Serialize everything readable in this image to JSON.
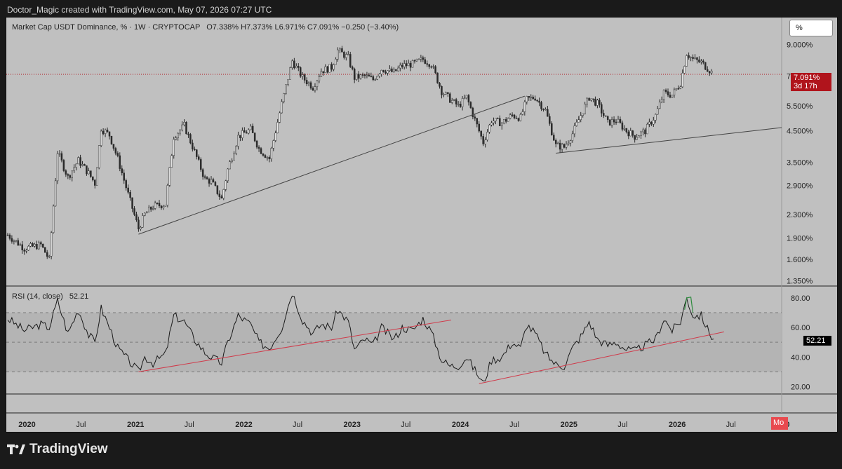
{
  "attribution": "Doctor_Magic created with TradingView.com, May 07, 2026 07:27 UTC",
  "legend": {
    "title": "Market Cap USDT Dominance, % · 1W · CRYPTOCAP",
    "ohlc": "O7.338%  H7.373%  L6.971%  C7.091%  −0.250 (−3.40%)"
  },
  "scale_button": "%",
  "price_tag": {
    "value": "7.091%",
    "countdown": "3d 17h",
    "color": "#b0141c"
  },
  "rsi": {
    "label": "RSI (14, close)",
    "value": "52.21"
  },
  "month_tag": "Mo",
  "brand": "TradingView",
  "colors": {
    "candle": "#2a2a2a",
    "trendline": "#444444",
    "rsi_trendline": "#d03a4a",
    "rsi_overbought": "#2e8b3e",
    "background": "#c0c0c0"
  },
  "chart_data": [
    {
      "type": "candlestick",
      "title": "Market Cap USDT Dominance",
      "y_scale": "log",
      "yticks": [
        "9.000%",
        "7.000%",
        "5.500%",
        "4.500%",
        "3.500%",
        "2.900%",
        "2.300%",
        "1.900%",
        "1.600%",
        "1.350%"
      ],
      "xticks": [
        "2020",
        "Jul",
        "2021",
        "Jul",
        "2022",
        "Jul",
        "2023",
        "Jul",
        "2024",
        "Jul",
        "2025",
        "Jul",
        "2026",
        "Jul",
        "20"
      ],
      "ylim": [
        1.3,
        10.0
      ],
      "last_close": 7.091,
      "series_points": [
        [
          "2019-10-28",
          1.95
        ],
        [
          "2019-12-23",
          1.75
        ],
        [
          "2020-02-17",
          1.8
        ],
        [
          "2020-03-16",
          1.6
        ],
        [
          "2020-04-13",
          3.8
        ],
        [
          "2020-05-18",
          3.1
        ],
        [
          "2020-06-22",
          3.55
        ],
        [
          "2020-07-27",
          3.2
        ],
        [
          "2020-08-17",
          2.95
        ],
        [
          "2020-09-07",
          4.6
        ],
        [
          "2020-10-05",
          4.35
        ],
        [
          "2020-11-02",
          3.6
        ],
        [
          "2020-12-07",
          2.7
        ],
        [
          "2021-01-11",
          2.05
        ],
        [
          "2021-02-01",
          2.3
        ],
        [
          "2021-03-01",
          2.45
        ],
        [
          "2021-04-12",
          2.5
        ],
        [
          "2021-05-10",
          4.3
        ],
        [
          "2021-06-14",
          4.7
        ],
        [
          "2021-07-19",
          3.8
        ],
        [
          "2021-08-23",
          3.05
        ],
        [
          "2021-09-13",
          3.0
        ],
        [
          "2021-10-18",
          2.6
        ],
        [
          "2021-11-08",
          3.3
        ],
        [
          "2021-12-13",
          4.3
        ],
        [
          "2022-01-24",
          4.55
        ],
        [
          "2022-02-21",
          3.9
        ],
        [
          "2022-03-28",
          3.6
        ],
        [
          "2022-05-09",
          5.6
        ],
        [
          "2022-06-13",
          7.9
        ],
        [
          "2022-07-18",
          6.9
        ],
        [
          "2022-08-22",
          6.4
        ],
        [
          "2022-09-19",
          7.3
        ],
        [
          "2022-10-24",
          7.5
        ],
        [
          "2022-11-14",
          8.6
        ],
        [
          "2022-12-19",
          8.1
        ],
        [
          "2023-01-09",
          6.9
        ],
        [
          "2023-02-13",
          7.0
        ],
        [
          "2023-03-13",
          6.8
        ],
        [
          "2023-04-10",
          7.4
        ],
        [
          "2023-05-22",
          7.2
        ],
        [
          "2023-06-19",
          7.6
        ],
        [
          "2023-07-24",
          7.7
        ],
        [
          "2023-08-28",
          8.0
        ],
        [
          "2023-09-25",
          7.7
        ],
        [
          "2023-10-30",
          6.2
        ],
        [
          "2023-11-27",
          5.8
        ],
        [
          "2023-12-25",
          5.5
        ],
        [
          "2024-01-22",
          5.9
        ],
        [
          "2024-02-26",
          4.7
        ],
        [
          "2024-03-18",
          4.1
        ],
        [
          "2024-04-15",
          4.9
        ],
        [
          "2024-05-20",
          4.8
        ],
        [
          "2024-06-24",
          5.1
        ],
        [
          "2024-07-22",
          5.0
        ],
        [
          "2024-08-12",
          5.8
        ],
        [
          "2024-09-09",
          5.9
        ],
        [
          "2024-10-14",
          5.3
        ],
        [
          "2024-11-18",
          4.0
        ],
        [
          "2024-12-16",
          3.95
        ],
        [
          "2025-01-13",
          4.4
        ],
        [
          "2025-02-17",
          5.3
        ],
        [
          "2025-03-10",
          5.9
        ],
        [
          "2025-04-07",
          5.6
        ],
        [
          "2025-05-12",
          4.8
        ],
        [
          "2025-06-09",
          4.9
        ],
        [
          "2025-07-14",
          4.5
        ],
        [
          "2025-08-11",
          4.3
        ],
        [
          "2025-09-15",
          4.5
        ],
        [
          "2025-10-20",
          5.1
        ],
        [
          "2025-11-17",
          6.1
        ],
        [
          "2025-12-15",
          6.0
        ],
        [
          "2026-01-12",
          6.6
        ],
        [
          "2026-02-02",
          8.4
        ],
        [
          "2026-02-23",
          8.0
        ],
        [
          "2026-03-23",
          7.8
        ],
        [
          "2026-04-20",
          7.34
        ],
        [
          "2026-05-04",
          7.091
        ]
      ]
    },
    {
      "type": "line",
      "title": "RSI (14, close)",
      "yticks": [
        "80.00",
        "60.00",
        "40.00",
        "20.00"
      ],
      "ylim": [
        15,
        88
      ],
      "bands": [
        70,
        50,
        30
      ],
      "last_value": 52.21,
      "series_points": [
        [
          "2019-10-28",
          66
        ],
        [
          "2019-12-23",
          58
        ],
        [
          "2020-02-17",
          62
        ],
        [
          "2020-03-16",
          60
        ],
        [
          "2020-04-13",
          78
        ],
        [
          "2020-05-18",
          56
        ],
        [
          "2020-06-22",
          72
        ],
        [
          "2020-07-27",
          55
        ],
        [
          "2020-08-17",
          50
        ],
        [
          "2020-09-07",
          73
        ],
        [
          "2020-10-05",
          60
        ],
        [
          "2020-11-02",
          46
        ],
        [
          "2020-12-07",
          38
        ],
        [
          "2021-01-11",
          30
        ],
        [
          "2021-02-01",
          40
        ],
        [
          "2021-03-01",
          36
        ],
        [
          "2021-04-12",
          42
        ],
        [
          "2021-05-10",
          68
        ],
        [
          "2021-06-14",
          64
        ],
        [
          "2021-07-19",
          52
        ],
        [
          "2021-08-23",
          43
        ],
        [
          "2021-09-13",
          40
        ],
        [
          "2021-10-18",
          36
        ],
        [
          "2021-11-08",
          50
        ],
        [
          "2021-12-13",
          68
        ],
        [
          "2022-01-24",
          62
        ],
        [
          "2022-02-21",
          50
        ],
        [
          "2022-03-28",
          46
        ],
        [
          "2022-05-09",
          60
        ],
        [
          "2022-06-13",
          84
        ],
        [
          "2022-07-18",
          65
        ],
        [
          "2022-08-22",
          56
        ],
        [
          "2022-09-19",
          62
        ],
        [
          "2022-10-24",
          60
        ],
        [
          "2022-11-14",
          72
        ],
        [
          "2022-12-19",
          64
        ],
        [
          "2023-01-09",
          45
        ],
        [
          "2023-02-13",
          52
        ],
        [
          "2023-03-13",
          48
        ],
        [
          "2023-04-10",
          60
        ],
        [
          "2023-05-22",
          52
        ],
        [
          "2023-06-19",
          60
        ],
        [
          "2023-07-24",
          58
        ],
        [
          "2023-08-28",
          66
        ],
        [
          "2023-09-25",
          57
        ],
        [
          "2023-10-30",
          38
        ],
        [
          "2023-11-27",
          34
        ],
        [
          "2023-12-25",
          34
        ],
        [
          "2024-01-22",
          40
        ],
        [
          "2024-02-26",
          29
        ],
        [
          "2024-03-18",
          22
        ],
        [
          "2024-04-15",
          38
        ],
        [
          "2024-05-20",
          40
        ],
        [
          "2024-06-24",
          50
        ],
        [
          "2024-07-22",
          46
        ],
        [
          "2024-08-12",
          62
        ],
        [
          "2024-09-09",
          56
        ],
        [
          "2024-10-14",
          42
        ],
        [
          "2024-11-18",
          35
        ],
        [
          "2024-12-16",
          34
        ],
        [
          "2025-01-13",
          46
        ],
        [
          "2025-02-17",
          56
        ],
        [
          "2025-03-10",
          64
        ],
        [
          "2025-04-07",
          52
        ],
        [
          "2025-05-12",
          48
        ],
        [
          "2025-06-09",
          50
        ],
        [
          "2025-07-14",
          45
        ],
        [
          "2025-08-11",
          44
        ],
        [
          "2025-09-15",
          48
        ],
        [
          "2025-10-20",
          52
        ],
        [
          "2025-11-17",
          66
        ],
        [
          "2025-12-15",
          58
        ],
        [
          "2026-01-12",
          64
        ],
        [
          "2026-02-02",
          80
        ],
        [
          "2026-02-23",
          68
        ],
        [
          "2026-03-23",
          68
        ],
        [
          "2026-04-20",
          56
        ],
        [
          "2026-05-04",
          52.21
        ]
      ]
    }
  ]
}
